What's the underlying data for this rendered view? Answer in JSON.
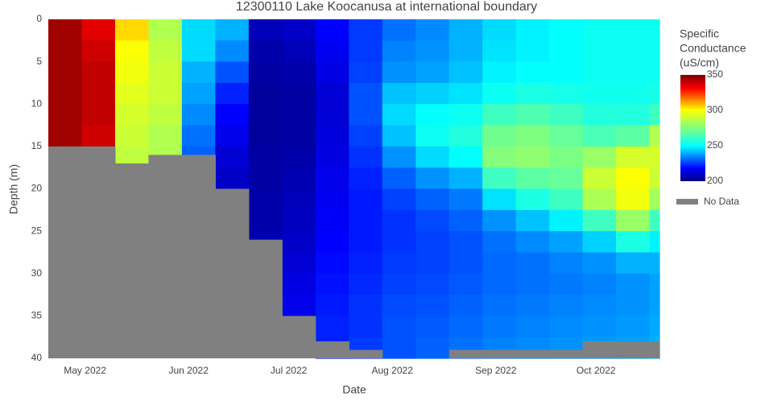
{
  "chart_data": {
    "type": "heatmap",
    "title": "12300110 Lake Koocanusa at international boundary",
    "x_label": "Date",
    "y_label": "Depth (m)",
    "x": [
      "2022-04-20",
      "2022-04-30",
      "2022-05-10",
      "2022-05-20",
      "2022-05-30",
      "2022-06-09",
      "2022-06-19",
      "2022-06-29",
      "2022-07-09",
      "2022-07-19",
      "2022-07-29",
      "2022-08-08",
      "2022-08-18",
      "2022-08-28",
      "2022-09-07",
      "2022-09-17",
      "2022-09-27",
      "2022-10-07",
      "2022-10-17"
    ],
    "y": [
      0,
      2.5,
      5,
      7.5,
      10,
      12.5,
      15,
      17.5,
      20,
      22.5,
      25,
      27.5,
      30,
      32.5,
      35,
      37.5
    ],
    "xlim": [
      "2022-04-20",
      "2022-10-20"
    ],
    "ylim": [
      40,
      0
    ],
    "xticks": [
      {
        "value": "2022-05-01",
        "label": "May 2022"
      },
      {
        "value": "2022-06-01",
        "label": "Jun 2022"
      },
      {
        "value": "2022-07-01",
        "label": "Jul 2022"
      },
      {
        "value": "2022-08-01",
        "label": "Aug 2022"
      },
      {
        "value": "2022-09-01",
        "label": "Sep 2022"
      },
      {
        "value": "2022-10-01",
        "label": "Oct 2022"
      }
    ],
    "yticks": [
      0,
      5,
      10,
      15,
      20,
      25,
      30,
      35,
      40
    ],
    "z": [
      [
        345,
        345,
        345,
        345,
        345,
        345,
        null,
        null,
        null,
        null,
        null,
        null,
        null,
        null,
        null,
        null
      ],
      [
        335,
        338,
        340,
        340,
        340,
        338,
        null,
        null,
        null,
        null,
        null,
        null,
        null,
        null,
        null,
        null
      ],
      [
        305,
        300,
        298,
        295,
        292,
        290,
        288,
        null,
        null,
        null,
        null,
        null,
        null,
        null,
        null,
        null
      ],
      [
        285,
        288,
        290,
        290,
        288,
        285,
        285,
        null,
        null,
        null,
        null,
        null,
        null,
        null,
        null,
        null
      ],
      [
        245,
        245,
        240,
        238,
        235,
        232,
        230,
        null,
        null,
        null,
        null,
        null,
        null,
        null,
        null,
        null
      ],
      [
        240,
        235,
        228,
        222,
        218,
        215,
        212,
        210,
        null,
        null,
        null,
        null,
        null,
        null,
        null,
        null
      ],
      [
        208,
        206,
        205,
        204,
        204,
        204,
        205,
        205,
        206,
        206,
        207,
        null,
        null,
        null,
        null,
        null
      ],
      [
        210,
        208,
        206,
        205,
        205,
        205,
        206,
        207,
        208,
        209,
        210,
        212,
        214,
        215,
        null,
        null
      ],
      [
        218,
        216,
        214,
        212,
        212,
        213,
        214,
        215,
        216,
        217,
        218,
        219,
        220,
        221,
        222,
        222
      ],
      [
        225,
        225,
        226,
        228,
        228,
        226,
        224,
        222,
        221,
        221,
        221,
        222,
        223,
        224,
        224,
        225
      ],
      [
        232,
        234,
        236,
        242,
        245,
        242,
        236,
        230,
        226,
        224,
        224,
        225,
        226,
        227,
        228,
        228
      ],
      [
        235,
        236,
        238,
        244,
        250,
        252,
        245,
        236,
        230,
        227,
        226,
        226,
        227,
        228,
        229,
        230
      ],
      [
        240,
        240,
        242,
        246,
        252,
        256,
        250,
        240,
        233,
        230,
        228,
        228,
        229,
        230,
        231,
        232
      ],
      [
        245,
        246,
        248,
        252,
        262,
        272,
        276,
        262,
        246,
        236,
        232,
        231,
        231,
        232,
        233,
        234
      ],
      [
        248,
        248,
        250,
        255,
        265,
        275,
        278,
        268,
        255,
        242,
        235,
        232,
        232,
        233,
        234,
        235
      ],
      [
        250,
        250,
        250,
        254,
        262,
        270,
        274,
        270,
        262,
        248,
        238,
        234,
        233,
        234,
        235,
        236
      ],
      [
        252,
        252,
        252,
        253,
        256,
        264,
        280,
        290,
        284,
        262,
        244,
        236,
        234,
        235,
        236,
        237
      ],
      [
        252,
        252,
        252,
        253,
        256,
        268,
        292,
        300,
        298,
        280,
        255,
        240,
        236,
        236,
        237,
        238
      ],
      [
        252,
        252,
        252,
        254,
        262,
        285,
        292,
        290,
        282,
        262,
        248,
        240,
        238,
        238,
        239,
        240
      ]
    ],
    "no_data_depth": [
      15,
      15,
      17,
      16,
      16,
      20,
      26,
      35,
      38,
      39,
      40,
      40,
      39,
      39,
      39,
      39,
      38,
      38,
      38
    ],
    "no_data_label": "No Data",
    "no_data_color": "#808080",
    "colorbar_title": [
      "Specific",
      "Conductance",
      "(uS/cm)"
    ],
    "zlim": [
      200,
      350
    ],
    "zticks": [
      200,
      250,
      300,
      350
    ],
    "colorscale": [
      [
        0,
        "#000080"
      ],
      [
        0.12,
        "#0000ff"
      ],
      [
        0.33,
        "#00ffff"
      ],
      [
        0.67,
        "#ffff00"
      ],
      [
        0.87,
        "#ff0000"
      ],
      [
        1,
        "#800000"
      ]
    ]
  }
}
